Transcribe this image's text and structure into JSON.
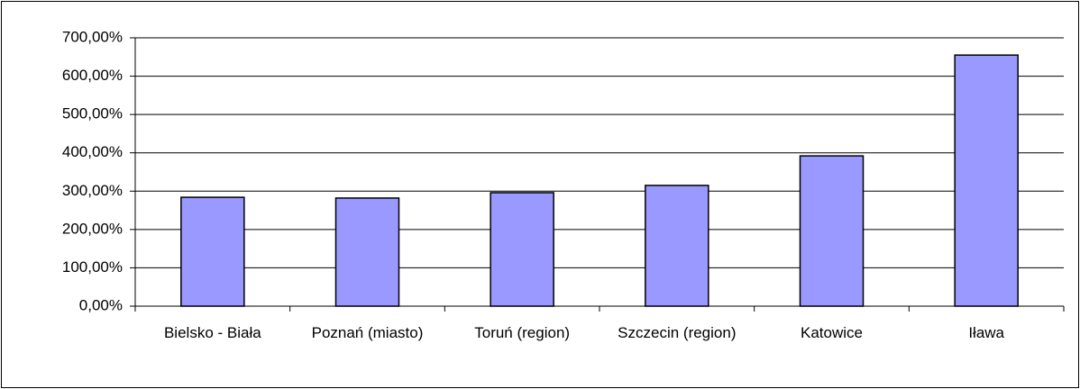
{
  "chart_data": {
    "type": "bar",
    "categories": [
      "Bielsko - Biała",
      "Poznań (miasto)",
      "Toruń (region)",
      "Szczecin (region)",
      "Katowice",
      "Iława"
    ],
    "values": [
      284,
      282,
      296,
      315,
      392,
      655
    ],
    "color": "#9999ff",
    "ylim": [
      0,
      700
    ],
    "yticks": [
      {
        "value": 0,
        "label": "0,00%"
      },
      {
        "value": 100,
        "label": "100,00%"
      },
      {
        "value": 200,
        "label": "200,00%"
      },
      {
        "value": 300,
        "label": "300,00%"
      },
      {
        "value": 400,
        "label": "400,00%"
      },
      {
        "value": 500,
        "label": "500,00%"
      },
      {
        "value": 600,
        "label": "600,00%"
      },
      {
        "value": 700,
        "label": "700,00%"
      }
    ],
    "grid": true
  }
}
